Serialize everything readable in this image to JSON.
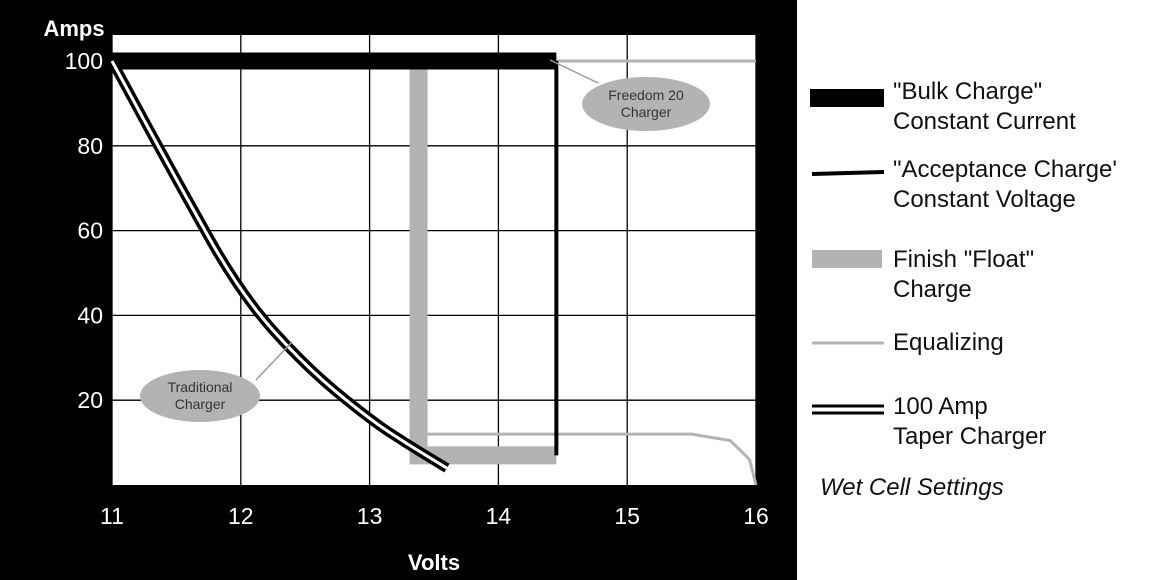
{
  "chart_data": {
    "type": "line",
    "ylabel": "Amps",
    "xlabel": "Volts",
    "xlim": [
      11,
      16
    ],
    "ylim": [
      0,
      100
    ],
    "x_ticks": [
      "11",
      "12",
      "13",
      "14",
      "15",
      "16"
    ],
    "y_ticks": [
      "20",
      "40",
      "60",
      "80",
      "100"
    ],
    "grid": true,
    "legend_position": "right",
    "background_color": "#000000",
    "plot_background_color": "#ffffff",
    "series": [
      {
        "name": "\"Bulk Charge\" Constant Current",
        "color": "#000000",
        "style": "thick-black",
        "points": [
          [
            11,
            100
          ],
          [
            14.45,
            100
          ]
        ]
      },
      {
        "name": "\"Acceptance Charge' Constant Voltage",
        "color": "#000000",
        "style": "black-line",
        "points": [
          [
            14.45,
            100
          ],
          [
            14.45,
            7
          ]
        ]
      },
      {
        "name": "Finish \"Float\" Charge",
        "color": "#b3b3b3",
        "style": "thick-gray",
        "points": [
          [
            13.38,
            100
          ],
          [
            13.38,
            7
          ],
          [
            14.45,
            7
          ]
        ]
      },
      {
        "name": "Equalizing",
        "color": "#b3b3b3",
        "style": "thin-gray",
        "points": [
          [
            14.45,
            100
          ],
          [
            16,
            100
          ],
          [
            13.38,
            12
          ],
          [
            15.5,
            12
          ],
          [
            15.8,
            10.5
          ],
          [
            15.95,
            6
          ],
          [
            16,
            0
          ]
        ]
      },
      {
        "name": "100 Amp Taper Charger",
        "color": "#000000",
        "style": "double-line",
        "points": [
          [
            11,
            100
          ],
          [
            11.5,
            72
          ],
          [
            12,
            45
          ],
          [
            12.5,
            28
          ],
          [
            13,
            15.5
          ],
          [
            13.3,
            9.5
          ],
          [
            13.6,
            4
          ]
        ]
      }
    ],
    "annotations": [
      {
        "lines": [
          "Freedom 20",
          "Charger"
        ],
        "target": "Bulk Charge"
      },
      {
        "lines": [
          "Traditional",
          "Charger"
        ],
        "target": "100 Amp Taper Charger"
      }
    ]
  },
  "legend": {
    "items": [
      {
        "line1": "\"Bulk Charge\"",
        "line2": "Constant Current",
        "swatch": "thick-black"
      },
      {
        "line1": "\"Acceptance Charge'",
        "line2": "Constant Voltage",
        "swatch": "black-line"
      },
      {
        "line1": "Finish \"Float\"",
        "line2": "Charge",
        "swatch": "thick-gray"
      },
      {
        "line1": "Equalizing",
        "line2": "",
        "swatch": "thin-gray"
      },
      {
        "line1": "100 Amp",
        "line2": "Taper Charger",
        "swatch": "double-line"
      }
    ],
    "note": "Wet Cell Settings"
  }
}
